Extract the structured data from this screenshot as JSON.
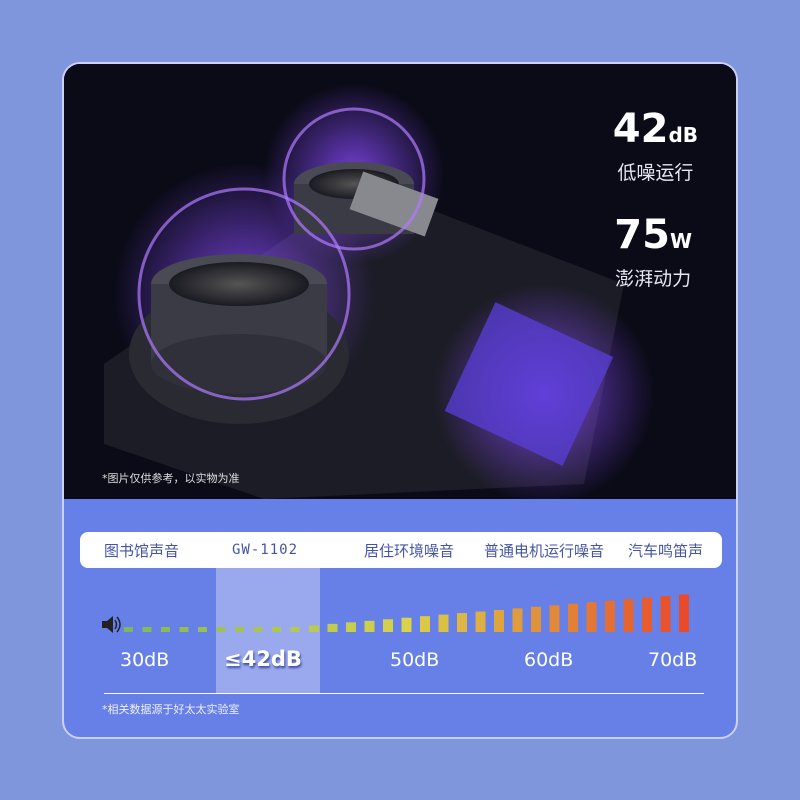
{
  "hero": {
    "specs": [
      {
        "value": "42",
        "unit": "dB",
        "label": "低噪运行"
      },
      {
        "value": "75",
        "unit": "W",
        "label": "澎湃动力"
      }
    ],
    "note": "*图片仅供参考，以实物为准"
  },
  "scale": {
    "labels": [
      "图书馆声音",
      "GW-1102",
      "居住环境噪音",
      "普通电机运行噪音",
      "汽车鸣笛声"
    ],
    "db_labels": [
      "30dB",
      "≤42dB",
      "50dB",
      "60dB",
      "70dB"
    ],
    "bar_count": 31,
    "highlight_label": "≤42dB",
    "colors": {
      "low": "#7fb85a",
      "mid": "#d9d24a",
      "high": "#e84a2a",
      "highlight": "#9aa9ee"
    },
    "icon": "speaker-icon"
  },
  "footnote": "*相关数据源于好太太实验室"
}
